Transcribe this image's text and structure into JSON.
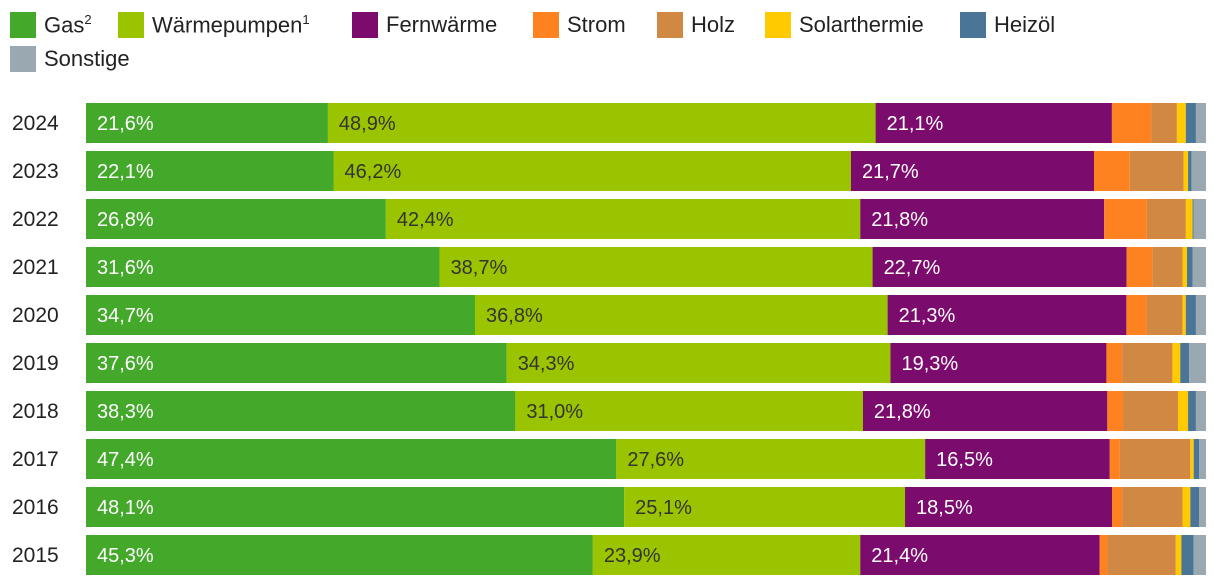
{
  "legend": [
    {
      "label": "Gas",
      "sup": "2",
      "color": "#44a82a"
    },
    {
      "label": "Wärmepumpen",
      "sup": "1",
      "color": "#9bc400"
    },
    {
      "label": "Fernwärme",
      "sup": "",
      "color": "#7b0c6e"
    },
    {
      "label": "Strom",
      "sup": "",
      "color": "#ff8221"
    },
    {
      "label": "Holz",
      "sup": "",
      "color": "#d08842"
    },
    {
      "label": "Solarthermie",
      "sup": "",
      "color": "#ffcb00"
    },
    {
      "label": "Heizöl",
      "sup": "",
      "color": "#4a7596"
    },
    {
      "label": "Sonstige",
      "sup": "",
      "color": "#9aa8b2"
    }
  ],
  "chart_data": {
    "type": "bar",
    "orientation": "horizontal",
    "stacked": true,
    "normalized": true,
    "unit": "%",
    "categories": [
      "2024",
      "2023",
      "2022",
      "2021",
      "2020",
      "2019",
      "2018",
      "2017",
      "2016",
      "2015"
    ],
    "series": [
      {
        "name": "Gas²",
        "values": [
          21.6,
          22.1,
          26.8,
          31.6,
          34.7,
          37.6,
          38.3,
          47.4,
          48.1,
          45.3
        ],
        "labels": [
          "21,6%",
          "22,1%",
          "26,8%",
          "31,6%",
          "34,7%",
          "37,6%",
          "38,3%",
          "47,4%",
          "48,1%",
          "45,3%"
        ]
      },
      {
        "name": "Wärmepumpen¹",
        "values": [
          48.9,
          46.2,
          42.4,
          38.7,
          36.8,
          34.3,
          31.0,
          27.6,
          25.1,
          23.9
        ],
        "labels": [
          "48,9%",
          "46,2%",
          "42,4%",
          "38,7%",
          "36,8%",
          "34,3%",
          "31,0%",
          "27,6%",
          "25,1%",
          "23,9%"
        ]
      },
      {
        "name": "Fernwärme",
        "values": [
          21.1,
          21.7,
          21.8,
          22.7,
          21.3,
          19.3,
          21.8,
          16.5,
          18.5,
          21.4
        ],
        "labels": [
          "21,1%",
          "21,7%",
          "21,8%",
          "22,7%",
          "21,3%",
          "19,3%",
          "21,8%",
          "16,5%",
          "18,5%",
          "21,4%"
        ]
      },
      {
        "name": "Strom",
        "values": [
          3.5,
          3.2,
          3.8,
          2.3,
          1.8,
          1.4,
          1.4,
          0.9,
          0.9,
          0.7
        ]
      },
      {
        "name": "Holz",
        "values": [
          2.3,
          4.8,
          3.5,
          2.7,
          3.2,
          4.5,
          4.9,
          6.3,
          5.4,
          6.1
        ]
      },
      {
        "name": "Solarthermie",
        "values": [
          0.8,
          0.4,
          0.6,
          0.4,
          0.3,
          0.7,
          0.9,
          0.3,
          0.7,
          0.5
        ]
      },
      {
        "name": "Heizöl",
        "values": [
          0.9,
          0.3,
          0.1,
          0.5,
          0.9,
          0.8,
          0.7,
          0.5,
          0.8,
          1.1
        ],
        "labels": []
      },
      {
        "name": "Sonstige",
        "values": [
          0.9,
          1.3,
          1.1,
          1.2,
          0.9,
          1.5,
          0.9,
          0.6,
          0.6,
          1.1
        ]
      }
    ],
    "xlim": [
      0,
      100
    ],
    "legend_position": "top",
    "grid": false
  }
}
